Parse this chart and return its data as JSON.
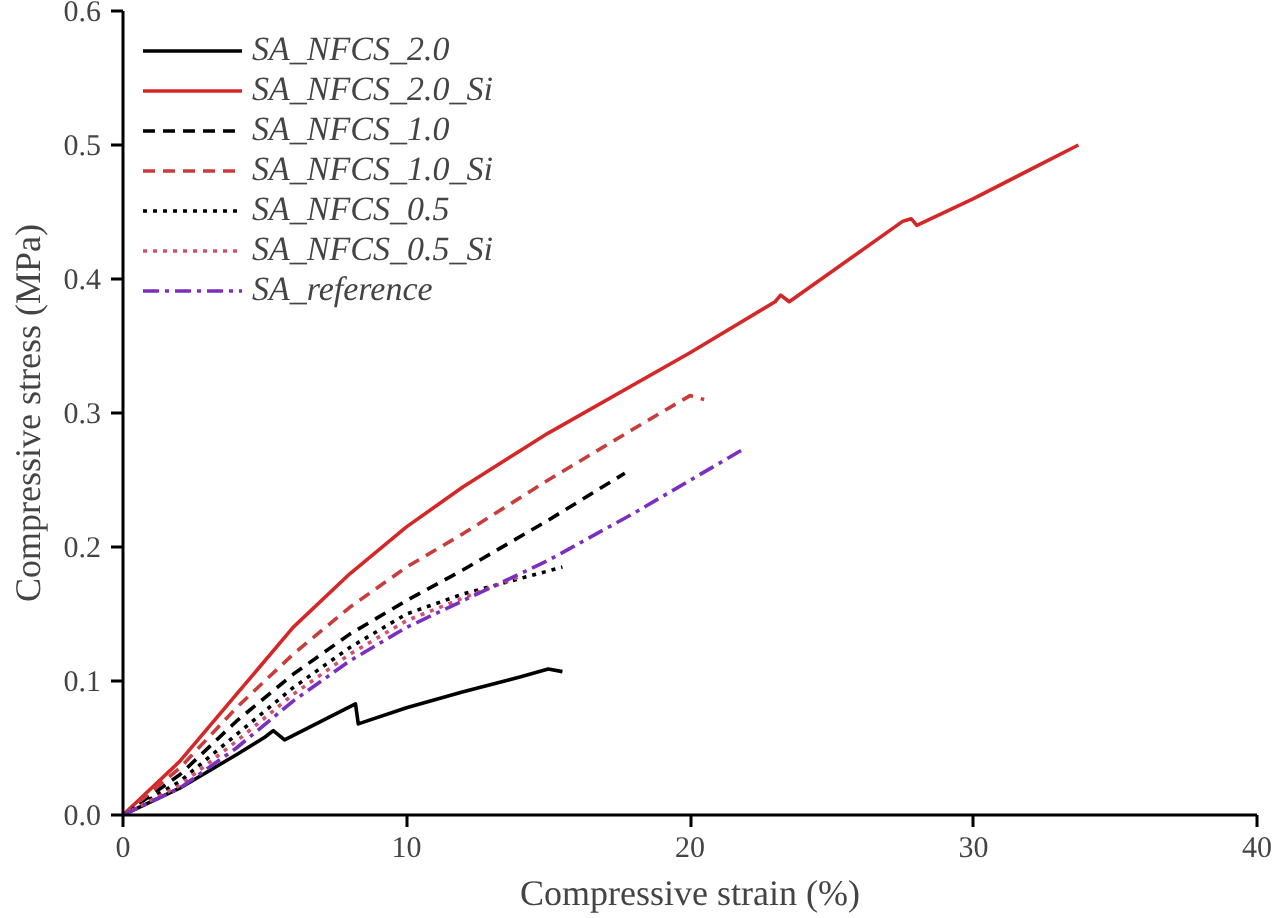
{
  "chart_data": {
    "type": "line",
    "xlabel": "Compressive strain (%)",
    "ylabel": "Compressive stress (MPa)",
    "xlim": [
      0,
      40
    ],
    "ylim": [
      0,
      0.6
    ],
    "xticks": [
      0,
      10,
      20,
      30,
      40
    ],
    "yticks": [
      {
        "value": 0,
        "label": "0.0"
      },
      0.1,
      0.2,
      0.3,
      0.4,
      0.5,
      0.6
    ],
    "grid": false,
    "legend": "top left",
    "series": [
      {
        "name": "SA_NFCS_2.0",
        "color": "#000000",
        "line_style": "solid",
        "x": [
          0,
          2,
          4,
          5,
          5.3,
          5.7,
          7,
          8.2,
          8.3,
          10,
          12,
          14,
          15,
          15.5
        ],
        "values": [
          0,
          0.02,
          0.045,
          0.058,
          0.063,
          0.056,
          0.07,
          0.083,
          0.068,
          0.08,
          0.092,
          0.103,
          0.109,
          0.107
        ]
      },
      {
        "name": "SA_NFCS_2.0_Si",
        "color": "#d62728",
        "line_style": "solid",
        "x": [
          0,
          2,
          4,
          6,
          8,
          10,
          12,
          15,
          20,
          23,
          23.2,
          23.5,
          27.5,
          27.8,
          28,
          30,
          33.7
        ],
        "values": [
          0,
          0.04,
          0.09,
          0.14,
          0.18,
          0.215,
          0.245,
          0.285,
          0.345,
          0.383,
          0.388,
          0.383,
          0.443,
          0.445,
          0.44,
          0.46,
          0.5
        ]
      },
      {
        "name": "SA_NFCS_1.0",
        "color": "#000000",
        "line_style": "dashed",
        "x": [
          0,
          2,
          4,
          6,
          8,
          10,
          12,
          15,
          17.7
        ],
        "values": [
          0,
          0.03,
          0.07,
          0.105,
          0.135,
          0.16,
          0.183,
          0.22,
          0.255
        ]
      },
      {
        "name": "SA_NFCS_1.0_Si",
        "color": "#c83c3c",
        "line_style": "dashed",
        "x": [
          0,
          2,
          4,
          6,
          8,
          10,
          12,
          15,
          18,
          20,
          20.5
        ],
        "values": [
          0,
          0.035,
          0.08,
          0.12,
          0.155,
          0.185,
          0.21,
          0.25,
          0.288,
          0.313,
          0.31
        ]
      },
      {
        "name": "SA_NFCS_0.5",
        "color": "#000000",
        "line_style": "dotted",
        "x": [
          0,
          2,
          4,
          6,
          8,
          10,
          12,
          15.5
        ],
        "values": [
          0,
          0.025,
          0.06,
          0.095,
          0.125,
          0.15,
          0.165,
          0.185
        ]
      },
      {
        "name": "SA_NFCS_0.5_Si",
        "color": "#d05070",
        "line_style": "dotted",
        "x": [
          0,
          2,
          4,
          6,
          8,
          10,
          12,
          14
        ],
        "values": [
          0,
          0.022,
          0.055,
          0.09,
          0.12,
          0.145,
          0.162,
          0.178
        ]
      },
      {
        "name": "SA_reference",
        "color": "#7b2fbf",
        "line_style": "dashdot",
        "x": [
          0,
          2,
          4,
          6,
          8,
          10,
          12,
          15,
          18,
          21.8
        ],
        "values": [
          0,
          0.02,
          0.05,
          0.085,
          0.115,
          0.14,
          0.16,
          0.19,
          0.225,
          0.272
        ]
      }
    ]
  }
}
